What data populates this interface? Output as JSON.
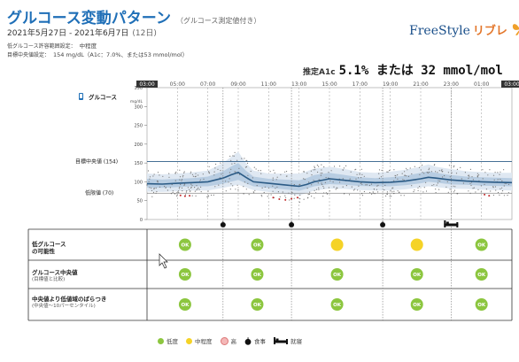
{
  "header": {
    "title": "グルコース変動パターン",
    "title_note": "（グルコース測定値付き）",
    "date_range": "2021年5月27日 - 2021年6月7日",
    "days": "(12日)",
    "low_risk_label": "低グルコース許容範囲設定：",
    "low_risk_value": "中程度",
    "target_label": "目標中央値設定：",
    "target_value": "154 mg/dL（A1c：7.0%、または53 mmol/mol）"
  },
  "logo": {
    "text": "FreeStyle",
    "suffix": "リブレ",
    "icon": "butterfly-icon"
  },
  "a1c": {
    "label": "推定A1c",
    "value": "5.1% または 32 mmol/mol"
  },
  "chart_data": {
    "type": "line",
    "time_ticks": [
      "03:00",
      "05:00",
      "07:00",
      "09:00",
      "11:00",
      "13:00",
      "15:00",
      "17:00",
      "19:00",
      "21:00",
      "23:00",
      "01:00",
      "03:00"
    ],
    "x_hours": [
      3,
      4,
      5,
      6,
      7,
      8,
      8.5,
      9,
      9.5,
      10,
      11,
      12,
      13,
      13.5,
      14,
      15,
      16,
      17,
      18,
      19,
      20,
      21,
      21.5,
      22,
      23,
      24,
      25,
      26,
      27
    ],
    "median": [
      95,
      94,
      96,
      98,
      100,
      110,
      118,
      125,
      112,
      100,
      96,
      92,
      88,
      93,
      100,
      108,
      104,
      100,
      98,
      99,
      102,
      108,
      112,
      110,
      105,
      102,
      100,
      99,
      98
    ],
    "p25": [
      85,
      84,
      86,
      88,
      88,
      95,
      100,
      105,
      96,
      88,
      84,
      80,
      76,
      82,
      88,
      94,
      92,
      89,
      88,
      88,
      91,
      96,
      100,
      98,
      93,
      92,
      90,
      89,
      88
    ],
    "p75": [
      108,
      106,
      108,
      110,
      114,
      128,
      140,
      150,
      130,
      114,
      108,
      106,
      104,
      110,
      118,
      124,
      118,
      112,
      110,
      112,
      116,
      124,
      128,
      124,
      118,
      114,
      112,
      111,
      110
    ],
    "p10": [
      74,
      73,
      75,
      77,
      77,
      84,
      88,
      92,
      85,
      78,
      73,
      68,
      64,
      70,
      77,
      82,
      81,
      78,
      77,
      77,
      80,
      85,
      88,
      86,
      82,
      81,
      79,
      78,
      77
    ],
    "p90": [
      122,
      120,
      122,
      125,
      130,
      150,
      165,
      180,
      150,
      130,
      122,
      122,
      122,
      128,
      135,
      140,
      134,
      126,
      124,
      127,
      132,
      140,
      146,
      140,
      134,
      128,
      126,
      124,
      124
    ],
    "low_readings": [
      [
        5.2,
        64
      ],
      [
        5.5,
        62
      ],
      [
        5.8,
        63
      ],
      [
        11.3,
        58
      ],
      [
        11.7,
        54
      ],
      [
        12.1,
        52
      ],
      [
        12.5,
        55
      ],
      [
        12.9,
        58
      ],
      [
        25.2,
        66
      ],
      [
        25.5,
        63
      ]
    ],
    "target_line": {
      "label": "目標中央値",
      "value": "(154)",
      "y": 154
    },
    "low_line": {
      "label": "低限値",
      "value": "(70)",
      "y": 70
    },
    "ylabel": "グルコース",
    "yunit": "mg/dL",
    "yticks": [
      "350",
      "300",
      "250",
      "200",
      "150",
      "100",
      "50",
      "0"
    ],
    "ylim": [
      0,
      350
    ],
    "event_icons": [
      {
        "icon": "apple-icon",
        "x": 8
      },
      {
        "icon": "apple-icon",
        "x": 12.5
      },
      {
        "icon": "apple-icon",
        "x": 18.5
      },
      {
        "icon": "bed-icon",
        "x": 23
      }
    ]
  },
  "table": {
    "rows": [
      {
        "label": "低グルコース",
        "label2": "の可能性",
        "sub": "",
        "cells": [
          "OK",
          "OK",
          "",
          "",
          "OK"
        ],
        "levels": [
          "low",
          "low",
          "medium",
          "medium",
          "low"
        ]
      },
      {
        "label": "グルコース中央値",
        "label2": "",
        "sub": "(目標値と比較)",
        "cells": [
          "OK",
          "OK",
          "OK",
          "OK",
          "OK"
        ],
        "levels": [
          "low",
          "low",
          "low",
          "low",
          "low"
        ]
      },
      {
        "label": "中央値より低値域のばらつき",
        "label2": "",
        "sub": "(中央値～10パーセンタイル)",
        "cells": [
          "OK",
          "OK",
          "OK",
          "OK",
          "OK"
        ],
        "levels": [
          "low",
          "low",
          "low",
          "low",
          "low"
        ]
      }
    ]
  },
  "legend": [
    {
      "label": "低度",
      "color": "#8cc63f",
      "kind": "dot"
    },
    {
      "label": "中程度",
      "color": "#f5d327",
      "kind": "dot"
    },
    {
      "label": "高",
      "color": "#f4b8b8",
      "kind": "dot"
    },
    {
      "label": "食事",
      "icon": "apple-icon",
      "kind": "apple"
    },
    {
      "label": "就寝",
      "icon": "bed-icon",
      "kind": "bed"
    }
  ],
  "colors": {
    "accent": "#1f6fb7",
    "line": "#2b5b86",
    "band_inner": "#b8cde2",
    "band_outer": "#dfe8f2",
    "ok": "#8cc63f",
    "medium": "#f5d327",
    "low_reading": "#c0282a"
  }
}
